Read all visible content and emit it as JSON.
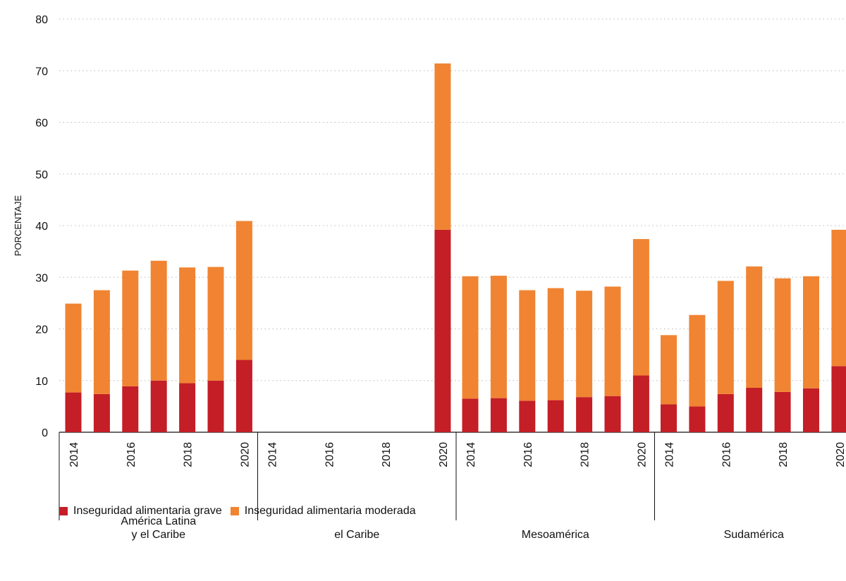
{
  "chart_data": {
    "type": "bar",
    "stacked": true,
    "ylabel": "PORCENTAJE",
    "xlabel": "",
    "ylim": [
      0,
      80
    ],
    "yticks": [
      0,
      10,
      20,
      30,
      40,
      50,
      60,
      70,
      80
    ],
    "grid": true,
    "legend_position": "bottom-left",
    "groups": [
      {
        "label": [
          "América Latina",
          "y el Caribe"
        ],
        "years": [
          "2014",
          "2015",
          "2016",
          "2017",
          "2018",
          "2019",
          "2020"
        ],
        "tick_labels": [
          "2014",
          "",
          "2016",
          "",
          "2018",
          "",
          "2020"
        ],
        "grave": [
          7.7,
          7.4,
          8.9,
          10.0,
          9.5,
          10.0,
          14.0
        ],
        "moderada": [
          17.2,
          20.1,
          22.4,
          23.2,
          22.4,
          22.0,
          26.9
        ]
      },
      {
        "label": [
          "el Caribe"
        ],
        "years": [
          "2014",
          "2015",
          "2016",
          "2017",
          "2018",
          "2019",
          "2020"
        ],
        "tick_labels": [
          "2014",
          "",
          "2016",
          "",
          "2018",
          "",
          "2020"
        ],
        "grave": [
          null,
          null,
          null,
          null,
          null,
          null,
          39.2
        ],
        "moderada": [
          null,
          null,
          null,
          null,
          null,
          null,
          32.2
        ]
      },
      {
        "label": [
          "Mesoamérica"
        ],
        "years": [
          "2014",
          "2015",
          "2016",
          "2017",
          "2018",
          "2019",
          "2020"
        ],
        "tick_labels": [
          "2014",
          "",
          "2016",
          "",
          "2018",
          "",
          "2020"
        ],
        "grave": [
          6.5,
          6.6,
          6.1,
          6.2,
          6.8,
          7.0,
          11.0
        ],
        "moderada": [
          23.7,
          23.7,
          21.4,
          21.7,
          20.6,
          21.2,
          26.4
        ]
      },
      {
        "label": [
          "Sudamérica"
        ],
        "years": [
          "2014",
          "2015",
          "2016",
          "2017",
          "2018",
          "2019",
          "2020"
        ],
        "tick_labels": [
          "2014",
          "",
          "2016",
          "",
          "2018",
          "",
          "2020"
        ],
        "grave": [
          5.4,
          5.0,
          7.4,
          8.6,
          7.8,
          8.5,
          12.8
        ],
        "moderada": [
          13.4,
          17.7,
          21.9,
          23.5,
          22.0,
          21.7,
          26.4
        ]
      }
    ],
    "series": [
      {
        "key": "grave",
        "name": "Inseguridad alimentaria grave",
        "color": "#c41e26"
      },
      {
        "key": "moderada",
        "name": "Inseguridad alimentaria moderada",
        "color": "#f08432"
      }
    ]
  }
}
